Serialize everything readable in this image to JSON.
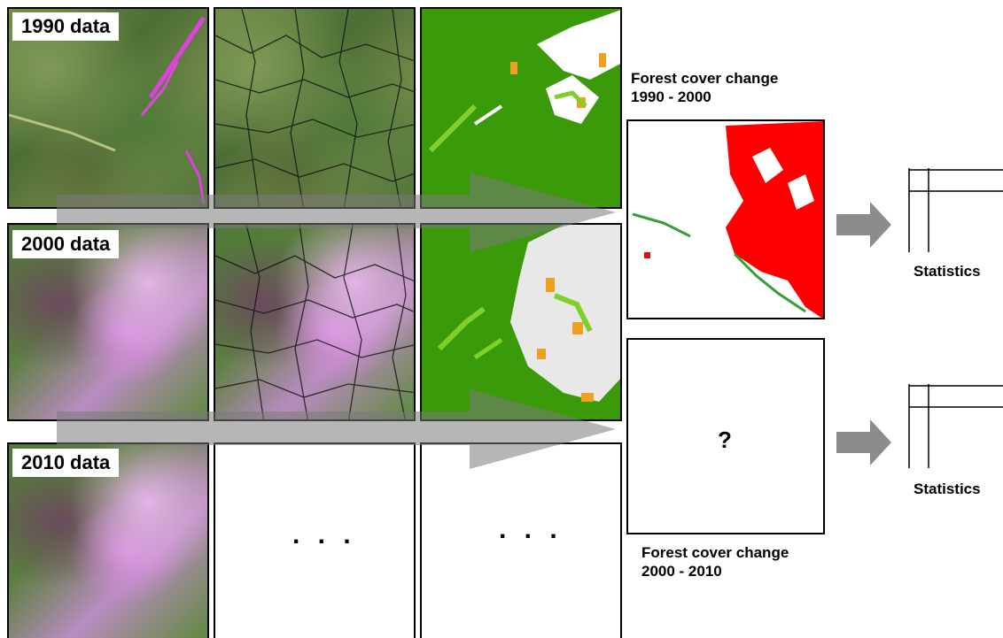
{
  "rows": [
    {
      "label": "1990 data"
    },
    {
      "label": "2000 data"
    },
    {
      "label": "2010 data"
    }
  ],
  "placeholders": {
    "ellipsis_segment": ". . .",
    "ellipsis_class": ". . ."
  },
  "change_maps": [
    {
      "caption_line1": "Forest cover change",
      "caption_line2": "1990 - 2000"
    },
    {
      "caption_line1": "Forest cover change",
      "caption_line2": "2000 - 2010",
      "unknown_mark": "?"
    }
  ],
  "statistics": [
    {
      "label": "Statistics"
    },
    {
      "label": "Statistics"
    }
  ],
  "colors": {
    "forest": "#3a9a0a",
    "regrowth": "#7fd02a",
    "disturbance": "#f0a020",
    "nonforest": "#e8e8e8",
    "change_red": "#ff0000",
    "change_green": "#33a033",
    "arrow": "#8c8c8c"
  }
}
